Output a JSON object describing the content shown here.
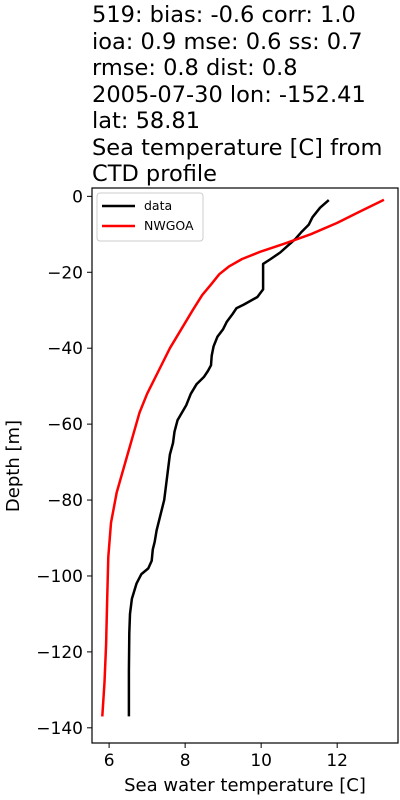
{
  "title": "519: bias: -0.6  corr: 1.0\nioa: 0.9  mse: 0.6  ss: 0.7\nrmse: 0.8  dist: 0.8\n2005-07-30 lon: -152.41\nlat: 58.81\nSea temperature [C] from\nCTD profile",
  "chart_data": {
    "type": "line",
    "xlabel": "Sea water temperature [C]",
    "ylabel": "Depth [m]",
    "xlim": [
      5.55,
      13.6
    ],
    "ylim": [
      -144,
      2.2
    ],
    "xticks": [
      6,
      8,
      10,
      12
    ],
    "yticks": [
      0,
      -20,
      -40,
      -60,
      -80,
      -100,
      -120,
      -140
    ],
    "legend_position": "upper-left",
    "grid": false,
    "series": [
      {
        "name": "data",
        "color": "#000000",
        "points": [
          [
            11.78,
            -1
          ],
          [
            11.55,
            -3
          ],
          [
            11.35,
            -5.5
          ],
          [
            11.25,
            -7.5
          ],
          [
            11.05,
            -9.5
          ],
          [
            10.9,
            -11.2
          ],
          [
            10.7,
            -13
          ],
          [
            10.5,
            -14.8
          ],
          [
            10.25,
            -16.5
          ],
          [
            10.05,
            -17.8
          ],
          [
            10.05,
            -20
          ],
          [
            10.05,
            -24.5
          ],
          [
            9.9,
            -26.5
          ],
          [
            9.55,
            -28.5
          ],
          [
            9.35,
            -29.5
          ],
          [
            9.25,
            -31
          ],
          [
            9.1,
            -33
          ],
          [
            9.0,
            -35
          ],
          [
            8.85,
            -37
          ],
          [
            8.75,
            -39.5
          ],
          [
            8.7,
            -42
          ],
          [
            8.68,
            -44.5
          ],
          [
            8.6,
            -46
          ],
          [
            8.5,
            -47.5
          ],
          [
            8.3,
            -49.5
          ],
          [
            8.15,
            -52
          ],
          [
            8.03,
            -55
          ],
          [
            7.8,
            -59
          ],
          [
            7.72,
            -62
          ],
          [
            7.68,
            -65
          ],
          [
            7.6,
            -68
          ],
          [
            7.55,
            -72
          ],
          [
            7.5,
            -76
          ],
          [
            7.45,
            -80
          ],
          [
            7.35,
            -84
          ],
          [
            7.25,
            -88
          ],
          [
            7.2,
            -91
          ],
          [
            7.15,
            -93
          ],
          [
            7.12,
            -96
          ],
          [
            7.03,
            -98
          ],
          [
            6.85,
            -99.5
          ],
          [
            6.72,
            -102
          ],
          [
            6.6,
            -106
          ],
          [
            6.55,
            -110
          ],
          [
            6.53,
            -115
          ],
          [
            6.52,
            -125
          ],
          [
            6.52,
            -137
          ]
        ]
      },
      {
        "name": "NWGOA",
        "color": "#ff0000",
        "points": [
          [
            13.23,
            -0.9
          ],
          [
            12.6,
            -4
          ],
          [
            12.0,
            -7
          ],
          [
            11.3,
            -10
          ],
          [
            10.6,
            -12.5
          ],
          [
            10.0,
            -14.5
          ],
          [
            9.5,
            -16.5
          ],
          [
            9.15,
            -18.5
          ],
          [
            8.9,
            -20.5
          ],
          [
            8.7,
            -23
          ],
          [
            8.45,
            -26
          ],
          [
            8.2,
            -30
          ],
          [
            7.9,
            -35
          ],
          [
            7.6,
            -40
          ],
          [
            7.3,
            -46
          ],
          [
            7.0,
            -52
          ],
          [
            6.8,
            -57
          ],
          [
            6.6,
            -64
          ],
          [
            6.4,
            -71
          ],
          [
            6.2,
            -78
          ],
          [
            6.05,
            -86
          ],
          [
            5.98,
            -95
          ],
          [
            5.95,
            -106
          ],
          [
            5.92,
            -118
          ],
          [
            5.88,
            -128
          ],
          [
            5.82,
            -137
          ]
        ]
      }
    ]
  }
}
